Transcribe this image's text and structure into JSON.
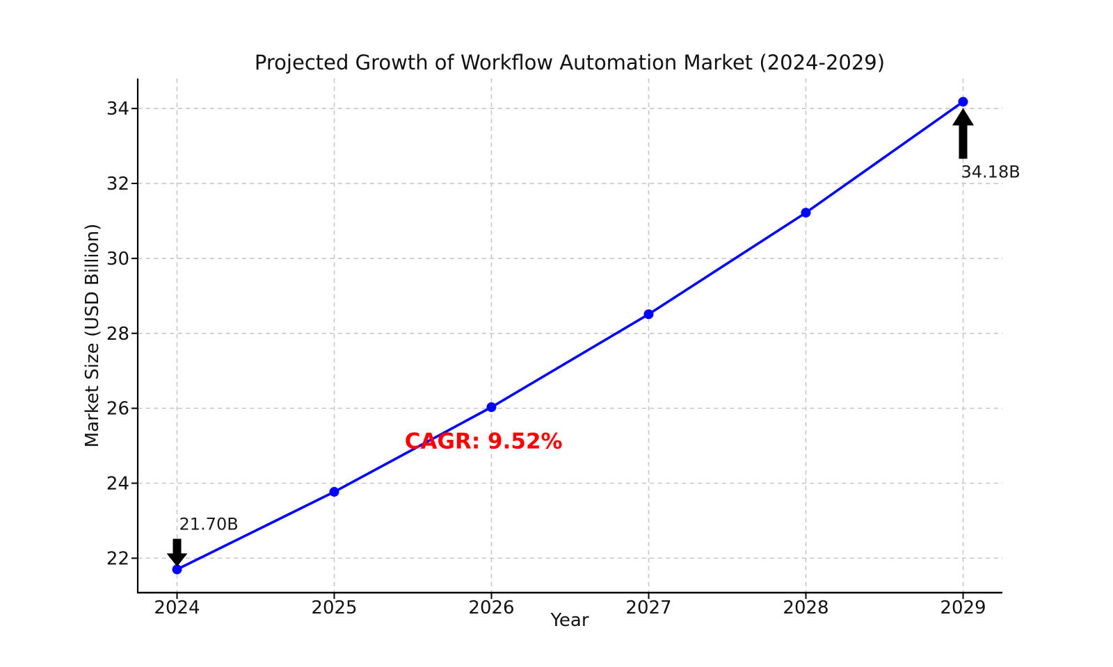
{
  "chart_data": {
    "type": "line",
    "title": "Projected Growth of Workflow Automation Market (2024-2029)",
    "xlabel": "Year",
    "ylabel": "Market Size (USD Billion)",
    "x": [
      2024,
      2025,
      2026,
      2027,
      2028,
      2029
    ],
    "series": [
      {
        "name": "Market Size (USD Billion)",
        "values": [
          21.7,
          23.77,
          26.03,
          28.51,
          31.22,
          34.18
        ],
        "color": "#0000ff",
        "marker": "circle",
        "line_width": 3.6,
        "marker_radius": 7
      }
    ],
    "xlim": [
      2023.75,
      2029.25
    ],
    "ylim": [
      21.08,
      34.8
    ],
    "xticks": [
      2024,
      2025,
      2026,
      2027,
      2028,
      2029
    ],
    "yticks": [
      22,
      24,
      26,
      28,
      30,
      32,
      34
    ],
    "grid": true,
    "grid_style": "dashed",
    "legend_position": "none",
    "annotations": [
      {
        "id": "start-value",
        "text": "21.70B",
        "point_x": 2024,
        "point_y": 21.7,
        "arrow": "down",
        "color": "#1a1a1a"
      },
      {
        "id": "end-value",
        "text": "34.18B",
        "point_x": 2029,
        "point_y": 34.18,
        "arrow": "up",
        "color": "#1a1a1a"
      },
      {
        "id": "cagr",
        "text": "CAGR: 9.52%",
        "point_x": 2025.95,
        "point_y": 24.95,
        "arrow": "none",
        "color": "#ff0000",
        "bold": true
      }
    ],
    "colors": {
      "line": "#0000ff",
      "grid": "#c8c8c8",
      "spine": "#000000",
      "tick": "#000000",
      "text": "#111111",
      "arrow": "#000000",
      "cagr": "#ff0000",
      "background": "#ffffff"
    }
  }
}
